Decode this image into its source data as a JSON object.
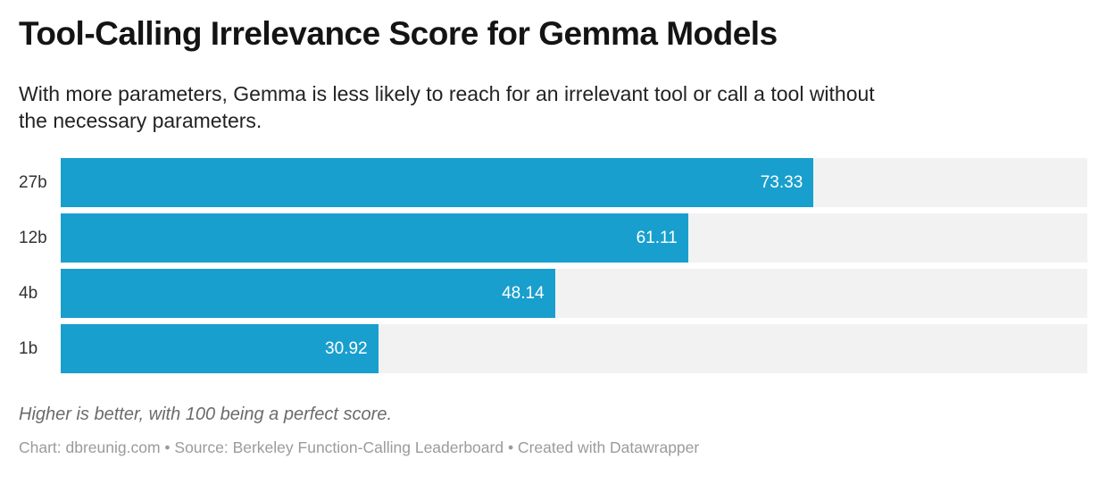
{
  "header": {
    "title": "Tool-Calling Irrelevance Score for Gemma Models",
    "subtitle_lines": [
      "With more parameters, Gemma is less likely to reach for an irrelevant tool or call a tool without",
      "the necessary parameters."
    ]
  },
  "footer": {
    "note": "Higher is better, with 100 being a perfect score.",
    "credit": "Chart: dbreunig.com • Source: Berkeley Function-Calling Leaderboard • Created with Datawrapper"
  },
  "colors": {
    "bar": "#199fcd",
    "track": "#f2f2f2",
    "value_label": "#ffffff"
  },
  "chart_data": {
    "type": "bar",
    "orientation": "horizontal",
    "title": "Tool-Calling Irrelevance Score for Gemma Models",
    "subtitle": "With more parameters, Gemma is less likely to reach for an irrelevant tool or call a tool without the necessary parameters.",
    "categories": [
      "27b",
      "12b",
      "4b",
      "1b"
    ],
    "values": [
      73.33,
      61.11,
      48.14,
      30.92
    ],
    "value_labels": [
      "73.33",
      "61.11",
      "48.14",
      "30.92"
    ],
    "xlabel": "",
    "ylabel": "",
    "xlim": [
      0,
      100
    ],
    "grid": false,
    "legend": false,
    "note": "Higher is better, with 100 being a perfect score."
  }
}
